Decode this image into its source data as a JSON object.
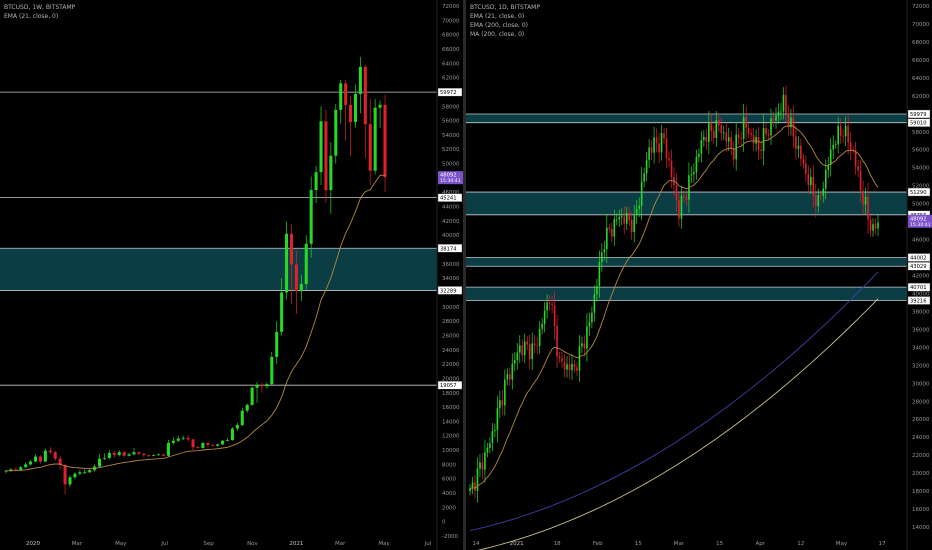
{
  "colors": {
    "background": "#000000",
    "candle_up": "#26d926",
    "candle_down": "#e0202b",
    "zone_fill": "#0b3e44",
    "level_line": "#c7c9cf",
    "ema21": "#b3873a",
    "ema200": "#3c3fa6",
    "ma200": "#c9bf84",
    "price_badge": "#7a52c9",
    "axis_text": "#9598a1"
  },
  "charts": [
    {
      "legend": [
        "BTCUSD, 1W, BITSTAMP",
        "EMA (21, close, 0)"
      ],
      "price_badge": {
        "price": "48092",
        "countdown": "15:30:41"
      },
      "level_labels": [
        {
          "price": 59972,
          "text": "59972"
        },
        {
          "price": 45241,
          "text": "45241"
        },
        {
          "price": 38174,
          "text": "38174"
        },
        {
          "price": 32289,
          "text": "32289"
        },
        {
          "price": 19057,
          "text": "19057"
        }
      ]
    },
    {
      "legend": [
        "BTCUSD, 1D, BITSTAMP",
        "EMA (21, close, 0)",
        "EMA (200, close, 0)",
        "MA (200, close, 0)"
      ],
      "price_badge": {
        "price": "48092",
        "countdown": "15:30:41"
      },
      "level_labels": [
        {
          "price": 59979,
          "text": "59979"
        },
        {
          "price": 59010,
          "text": "59010"
        },
        {
          "price": 51290,
          "text": "51290"
        },
        {
          "price": 48756,
          "text": "48756"
        },
        {
          "price": 44002,
          "text": "44002"
        },
        {
          "price": 43029,
          "text": "43029"
        },
        {
          "price": 40701,
          "text": "40701"
        },
        {
          "price": 39216,
          "text": "39216"
        }
      ]
    }
  ],
  "chart_data": [
    {
      "type": "candlestick",
      "symbol": "BTCUSD",
      "timeframe": "1W",
      "exchange": "BITSTAMP",
      "ylim": [
        -2000,
        72000
      ],
      "y_ticks": [
        72000,
        70000,
        68000,
        66000,
        64000,
        62000,
        60000,
        58000,
        56000,
        54000,
        52000,
        50000,
        48000,
        46000,
        44000,
        42000,
        40000,
        38000,
        36000,
        34000,
        32000,
        30000,
        28000,
        26000,
        24000,
        22000,
        20000,
        18000,
        16000,
        14000,
        12000,
        10000,
        8000,
        6000,
        4000,
        2000,
        0,
        -2000
      ],
      "x_ticks": [
        "2020",
        "Mar",
        "May",
        "Jul",
        "Sep",
        "Nov",
        "2021",
        "Mar",
        "May",
        "Jul"
      ],
      "zones": [
        [
          32289,
          38174
        ]
      ],
      "levels": [
        59972,
        45241,
        38174,
        32289,
        19057
      ],
      "candles": [
        [
          7000,
          7100,
          7250,
          6750
        ],
        [
          7100,
          7300,
          7500,
          6900
        ],
        [
          7300,
          7200,
          7600,
          7000
        ],
        [
          7200,
          7600,
          7800,
          7100
        ],
        [
          7600,
          8000,
          8300,
          7500
        ],
        [
          8000,
          8400,
          8600,
          7800
        ],
        [
          8400,
          9100,
          9400,
          8300
        ],
        [
          9100,
          8400,
          9300,
          8100
        ],
        [
          8400,
          9900,
          10200,
          8300
        ],
        [
          9900,
          9700,
          10400,
          9400
        ],
        [
          9700,
          8800,
          9900,
          8500
        ],
        [
          8800,
          7900,
          9200,
          7300
        ],
        [
          7900,
          5200,
          8100,
          3850
        ],
        [
          5200,
          6200,
          6500,
          4800
        ],
        [
          6200,
          6700,
          6900,
          5900
        ],
        [
          6700,
          6900,
          7200,
          6500
        ],
        [
          6900,
          6900,
          7300,
          6600
        ],
        [
          6900,
          7200,
          7500,
          6800
        ],
        [
          7200,
          7700,
          8000,
          7000
        ],
        [
          7700,
          8800,
          9400,
          7600
        ],
        [
          8800,
          8900,
          9500,
          8600
        ],
        [
          8900,
          9600,
          10000,
          8700
        ],
        [
          9600,
          9300,
          9900,
          8900
        ],
        [
          9300,
          9700,
          10000,
          9100
        ],
        [
          9700,
          9200,
          9900,
          9000
        ],
        [
          9200,
          9400,
          9600,
          9100
        ],
        [
          9400,
          9700,
          10300,
          9300
        ],
        [
          9700,
          9500,
          9800,
          9300
        ],
        [
          9500,
          9300,
          9500,
          9000
        ],
        [
          9300,
          9200,
          9400,
          9000
        ],
        [
          9200,
          9300,
          9400,
          9100
        ],
        [
          9300,
          9400,
          9500,
          9200
        ],
        [
          9400,
          9200,
          9400,
          9100
        ],
        [
          9200,
          11000,
          11400,
          9100
        ],
        [
          11000,
          11300,
          11800,
          10800
        ],
        [
          11300,
          11600,
          12000,
          11100
        ],
        [
          11600,
          11700,
          12000,
          11400
        ],
        [
          11700,
          11500,
          12100,
          11200
        ],
        [
          11500,
          10400,
          11600,
          10000
        ],
        [
          10400,
          10300,
          10600,
          10200
        ],
        [
          10300,
          11000,
          11100,
          10200
        ],
        [
          11000,
          10700,
          11000,
          10400
        ],
        [
          10700,
          10600,
          10900,
          10500
        ],
        [
          10600,
          10800,
          10900,
          10500
        ],
        [
          10800,
          11300,
          11400,
          10700
        ],
        [
          11300,
          11400,
          11700,
          11200
        ],
        [
          11400,
          13000,
          13200,
          11300
        ],
        [
          13000,
          13500,
          13800,
          12700
        ],
        [
          13500,
          15500,
          15900,
          13300
        ],
        [
          15500,
          16300,
          16500,
          15200
        ],
        [
          16300,
          18700,
          18900,
          16200
        ],
        [
          18700,
          19100,
          19500,
          16600
        ],
        [
          19100,
          18900,
          19400,
          18000
        ],
        [
          18900,
          19200,
          19500,
          18600
        ],
        [
          19200,
          23000,
          23700,
          19100
        ],
        [
          23000,
          26500,
          28000,
          22000
        ],
        [
          26500,
          32000,
          34000,
          26000
        ],
        [
          32000,
          40200,
          41900,
          31000
        ],
        [
          40200,
          35900,
          41500,
          30400
        ],
        [
          35900,
          32200,
          37800,
          29000
        ],
        [
          32200,
          33200,
          34500,
          30800
        ],
        [
          33200,
          38800,
          40000,
          32400
        ],
        [
          38800,
          46300,
          48200,
          36900
        ],
        [
          46300,
          48800,
          49700,
          44500
        ],
        [
          48800,
          55900,
          58000,
          47000
        ],
        [
          55900,
          46300,
          57500,
          44500
        ],
        [
          46300,
          51100,
          53000,
          43000
        ],
        [
          51100,
          57500,
          58300,
          50000
        ],
        [
          57500,
          61200,
          61700,
          55500
        ],
        [
          61200,
          58200,
          61700,
          53200
        ],
        [
          58200,
          55800,
          59500,
          51000
        ],
        [
          55800,
          59700,
          61000,
          55000
        ],
        [
          59700,
          63500,
          64900,
          57000
        ],
        [
          63500,
          55500,
          63800,
          50700
        ],
        [
          55500,
          49000,
          59000,
          47000
        ],
        [
          49000,
          57800,
          59000,
          48500
        ],
        [
          57800,
          58200,
          58800,
          55000
        ],
        [
          58200,
          48100,
          59600,
          46000
        ]
      ],
      "ema21_end": 47000
    },
    {
      "type": "candlestick",
      "symbol": "BTCUSD",
      "timeframe": "1D",
      "exchange": "BITSTAMP",
      "ylim": [
        13000,
        72000
      ],
      "y_ticks": [
        72000,
        70000,
        68000,
        66000,
        64000,
        62000,
        60000,
        58000,
        56000,
        54000,
        52000,
        50000,
        48000,
        46000,
        44000,
        42000,
        40000,
        38000,
        36000,
        34000,
        32000,
        30000,
        28000,
        26000,
        24000,
        22000,
        20000,
        18000,
        16000,
        14000
      ],
      "x_ticks": [
        "14",
        "2021",
        "18",
        "Feb",
        "15",
        "Mar",
        "15",
        "Apr",
        "12",
        "May",
        "17"
      ],
      "zones": [
        [
          59010,
          59979
        ],
        [
          48756,
          51290
        ],
        [
          43029,
          44002
        ],
        [
          39216,
          40701
        ]
      ],
      "levels": [
        59979,
        59010,
        51290,
        48756,
        44002,
        43029,
        40701,
        39216
      ],
      "ema200_range": [
        13600,
        42400
      ],
      "ma200_range": [
        11200,
        39400
      ],
      "ema21_end": 53500,
      "last_price": 48092
    }
  ]
}
